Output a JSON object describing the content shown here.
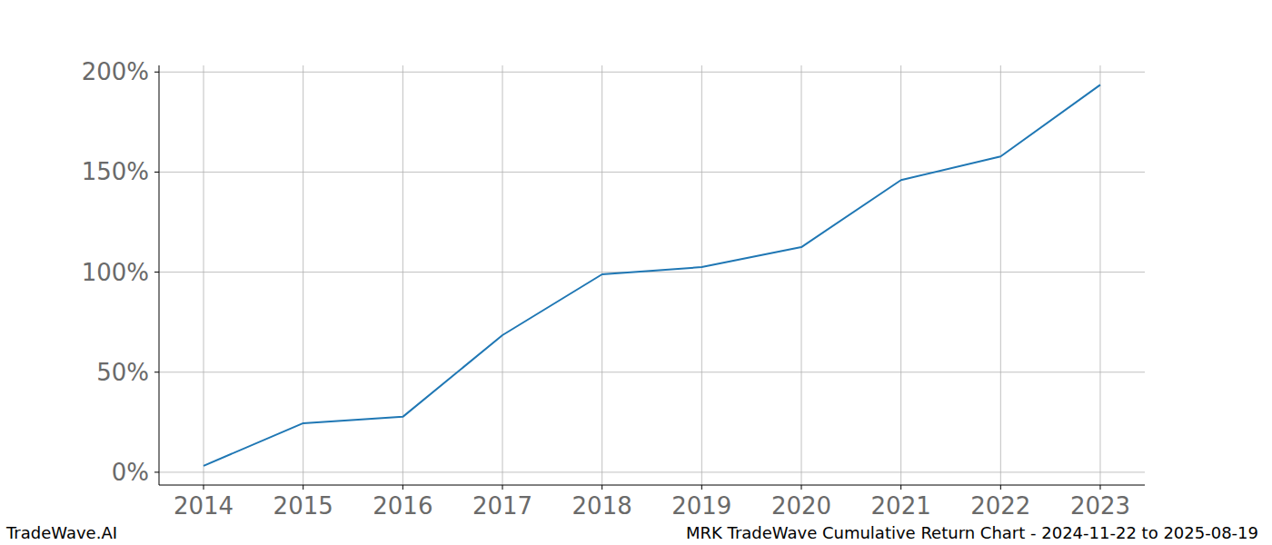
{
  "chart_data": {
    "type": "line",
    "title": "MRK TradeWave Cumulative Return Chart - 2024-11-22 to 2025-08-19",
    "source": "TradeWave.AI",
    "x": [
      2014,
      2015,
      2016,
      2017,
      2018,
      2019,
      2020,
      2021,
      2022,
      2023
    ],
    "values": [
      3.2,
      24.5,
      27.7,
      68.5,
      98.9,
      102.5,
      112.5,
      146,
      157.8,
      193.6
    ],
    "color": "#1f77b4",
    "xlim": [
      2013.553,
      2023.447
    ],
    "xticks": [
      2014,
      2015,
      2016,
      2017,
      2018,
      2019,
      2020,
      2021,
      2022,
      2023
    ],
    "ylim": [
      -6.4,
      203.3
    ],
    "yticks": [
      {
        "value": 0,
        "label": "0%"
      },
      {
        "value": 50,
        "label": "50%"
      },
      {
        "value": 100,
        "label": "100%"
      },
      {
        "value": 150,
        "label": "150%"
      },
      {
        "value": 200,
        "label": "200%"
      }
    ],
    "grid": true
  }
}
